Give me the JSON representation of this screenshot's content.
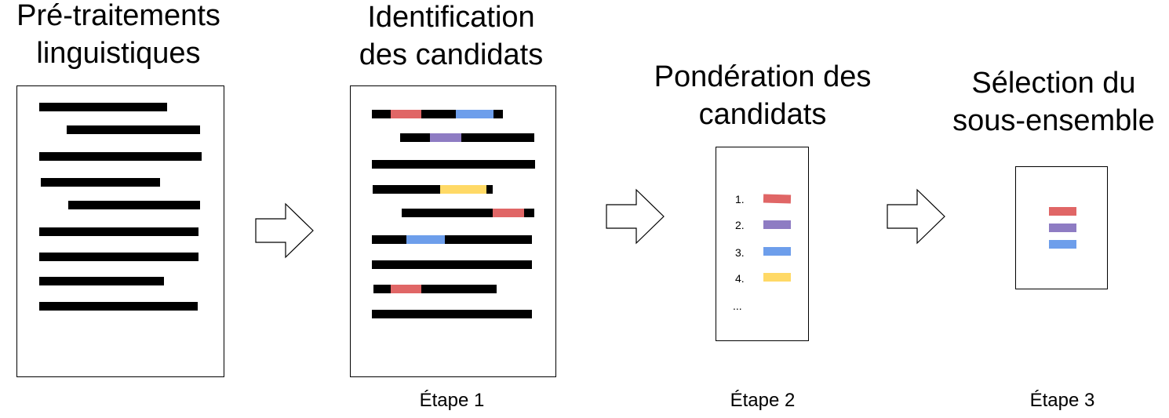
{
  "stages": [
    {
      "title_lines": [
        "Pré-traitements",
        "linguistiques"
      ],
      "step_label": ""
    },
    {
      "title_lines": [
        "Identification",
        "des candidats"
      ],
      "step_label": "Étape 1"
    },
    {
      "title_lines": [
        "Pondération des",
        "candidats"
      ],
      "step_label": "Étape 2"
    },
    {
      "title_lines": [
        "Sélection du",
        "sous-ensemble"
      ],
      "step_label": "Étape 3"
    }
  ],
  "ranking": {
    "items": [
      {
        "label": "1.",
        "color": "#e06666"
      },
      {
        "label": "2.",
        "color": "#8e7cc3"
      },
      {
        "label": "3.",
        "color": "#6d9eeb"
      },
      {
        "label": "4.",
        "color": "#ffd966"
      }
    ],
    "more": "..."
  },
  "selection_colors": [
    "#e06666",
    "#8e7cc3",
    "#6d9eeb"
  ],
  "colors": {
    "red": "#e06666",
    "purple": "#8e7cc3",
    "blue": "#6d9eeb",
    "yellow": "#ffd966",
    "text_line": "#000000"
  }
}
